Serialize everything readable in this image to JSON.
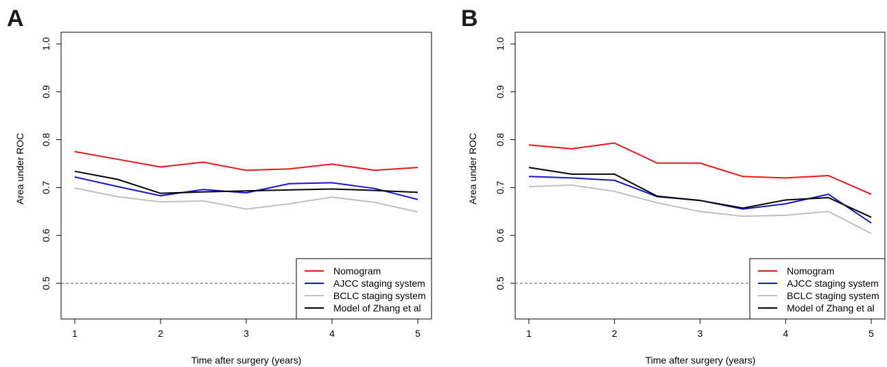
{
  "chart_data": [
    {
      "type": "line",
      "panel_label": "A",
      "xlabel": "Time after surgery (years)",
      "ylabel": "Area under ROC",
      "x": [
        1,
        1.5,
        2,
        2.5,
        3,
        3.5,
        4,
        4.5,
        5
      ],
      "xticks": [
        "1",
        "2",
        "3",
        "4",
        "5"
      ],
      "yticks": [
        "0.5",
        "0.6",
        "0.7",
        "0.8",
        "0.9",
        "1.0"
      ],
      "xlim": [
        1,
        5
      ],
      "ylim": [
        0.5,
        1.0
      ],
      "legend_position": "bottom-right",
      "reference_line": {
        "y": 0.5,
        "style": "dashed"
      },
      "series": [
        {
          "name": "Nomogram",
          "color": "#e8141b",
          "values": [
            0.775,
            0.759,
            0.743,
            0.753,
            0.736,
            0.739,
            0.749,
            0.736,
            0.742
          ]
        },
        {
          "name": "AJCC staging system",
          "color": "#1414cc",
          "values": [
            0.722,
            0.702,
            0.683,
            0.696,
            0.689,
            0.708,
            0.71,
            0.698,
            0.675
          ]
        },
        {
          "name": "BCLC staging system",
          "color": "#bfbfbf",
          "values": [
            0.699,
            0.681,
            0.67,
            0.672,
            0.655,
            0.666,
            0.68,
            0.669,
            0.649
          ]
        },
        {
          "name": "Model of Zhang et al",
          "color": "#000000",
          "values": [
            0.734,
            0.717,
            0.688,
            0.691,
            0.693,
            0.695,
            0.697,
            0.694,
            0.69
          ]
        }
      ]
    },
    {
      "type": "line",
      "panel_label": "B",
      "xlabel": "Time after surgery (years)",
      "ylabel": "Area under ROC",
      "x": [
        1,
        1.5,
        2,
        2.5,
        3,
        3.5,
        4,
        4.5,
        5
      ],
      "xticks": [
        "1",
        "2",
        "3",
        "4",
        "5"
      ],
      "yticks": [
        "0.5",
        "0.6",
        "0.7",
        "0.8",
        "0.9",
        "1.0"
      ],
      "xlim": [
        1,
        5
      ],
      "ylim": [
        0.5,
        1.0
      ],
      "legend_position": "bottom-right",
      "reference_line": {
        "y": 0.5,
        "style": "dashed"
      },
      "series": [
        {
          "name": "Nomogram",
          "color": "#e8141b",
          "values": [
            0.789,
            0.781,
            0.793,
            0.751,
            0.751,
            0.723,
            0.72,
            0.725,
            0.686
          ]
        },
        {
          "name": "AJCC staging system",
          "color": "#1414cc",
          "values": [
            0.723,
            0.72,
            0.715,
            0.681,
            0.673,
            0.655,
            0.666,
            0.686,
            0.626
          ]
        },
        {
          "name": "BCLC staging system",
          "color": "#bfbfbf",
          "values": [
            0.702,
            0.705,
            0.692,
            0.668,
            0.65,
            0.64,
            0.642,
            0.65,
            0.604
          ]
        },
        {
          "name": "Model of Zhang et al",
          "color": "#000000",
          "values": [
            0.742,
            0.728,
            0.728,
            0.682,
            0.673,
            0.657,
            0.674,
            0.679,
            0.638
          ]
        }
      ]
    }
  ]
}
